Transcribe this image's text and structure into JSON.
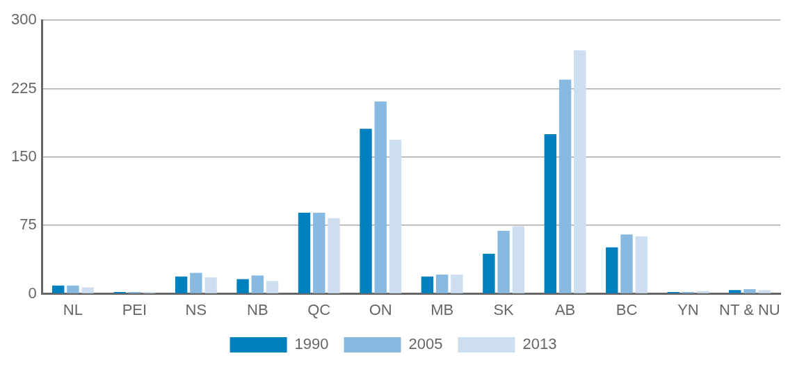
{
  "chart_data": {
    "type": "bar",
    "categories": [
      "NL",
      "PEI",
      "NS",
      "NB",
      "QC",
      "ON",
      "MB",
      "SK",
      "AB",
      "BC",
      "YN",
      "NT & NU"
    ],
    "series": [
      {
        "name": "1990",
        "color": "#0080bf",
        "values": [
          9,
          2,
          19,
          16,
          89,
          181,
          19,
          44,
          175,
          51,
          2,
          4
        ]
      },
      {
        "name": "2005",
        "color": "#88bae1",
        "values": [
          9,
          2,
          23,
          20,
          89,
          211,
          21,
          69,
          235,
          65,
          2,
          5
        ]
      },
      {
        "name": "2013",
        "color": "#ccdeef",
        "values": [
          7,
          2,
          18,
          14,
          83,
          169,
          21,
          74,
          267,
          63,
          3,
          4
        ]
      }
    ],
    "ylim": [
      0,
      300
    ],
    "yticks": [
      0,
      75,
      150,
      225,
      300
    ],
    "grid": "y",
    "legend": "bottom"
  }
}
